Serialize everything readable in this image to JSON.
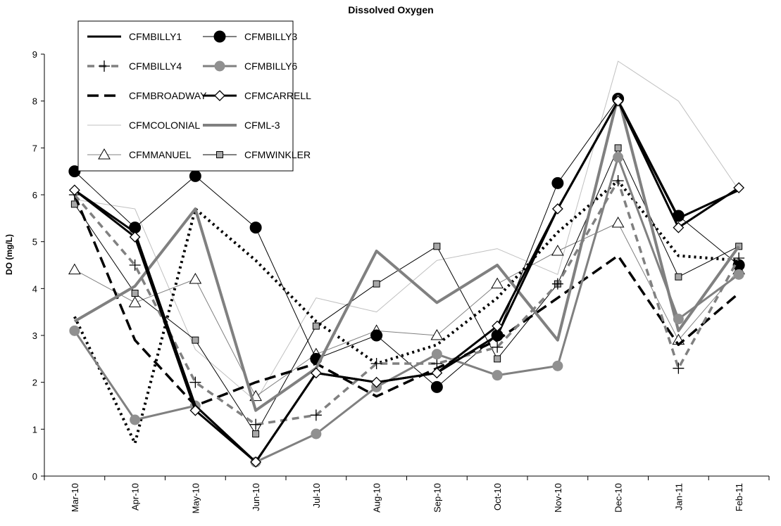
{
  "chart_data": {
    "type": "line",
    "title": "Dissolved Oxygen",
    "xlabel": "",
    "ylabel": "DO (mg/L)",
    "ylim": [
      0,
      9
    ],
    "yticks": [
      0,
      1,
      2,
      3,
      4,
      5,
      6,
      7,
      8,
      9
    ],
    "grid": false,
    "legend_placement": "top-left",
    "categories": [
      "Mar-10",
      "Apr-10",
      "May-10",
      "Jun-10",
      "Jul-10",
      "Aug-10",
      "Sep-10",
      "Oct-10",
      "Nov-10",
      "Dec-10",
      "Jan-11",
      "Feb-11"
    ],
    "series": [
      {
        "name": "CFMBILLY1",
        "color": "#000000",
        "dash": "solid",
        "marker": "none",
        "values": [
          6.1,
          5.2,
          1.5,
          0.3,
          2.2,
          2.0,
          2.2,
          3.0,
          5.7,
          8.0,
          5.5,
          6.1
        ]
      },
      {
        "name": "CFMBILLY3",
        "color": "#000000",
        "dash": "solid-thin",
        "marker": "circle-filled-black",
        "values": [
          6.5,
          5.3,
          6.4,
          5.3,
          2.5,
          3.0,
          1.9,
          3.0,
          6.25,
          8.05,
          5.55,
          4.5
        ]
      },
      {
        "name": "CFMBILLY4",
        "color": "#808080",
        "dash": "dash",
        "marker": "plus",
        "values": [
          6.0,
          4.5,
          2.0,
          1.1,
          1.3,
          2.4,
          2.4,
          2.75,
          4.1,
          6.3,
          2.3,
          4.65
        ]
      },
      {
        "name": "CFMBILLY6",
        "color": "#808080",
        "dash": "solid",
        "marker": "circle-filled-gray",
        "values": [
          3.1,
          1.2,
          1.5,
          0.3,
          0.9,
          1.9,
          2.6,
          2.15,
          2.35,
          6.8,
          3.35,
          4.3
        ]
      },
      {
        "name": "CFMBROADWAY",
        "color": "#000000",
        "dash": "longdash",
        "marker": "none",
        "values": [
          6.0,
          2.9,
          1.5,
          2.0,
          2.4,
          1.7,
          2.3,
          2.9,
          3.8,
          4.7,
          2.8,
          3.9
        ]
      },
      {
        "name": "CFMCARRELL",
        "color": "#000000",
        "dash": "solid",
        "marker": "diamond-open",
        "values": [
          6.1,
          5.1,
          1.4,
          0.3,
          2.2,
          2.0,
          2.2,
          3.2,
          5.7,
          8.0,
          5.3,
          6.15
        ]
      },
      {
        "name": "CFMCOLONIAL",
        "color": "#c0c0c0",
        "dash": "solid-thin",
        "marker": "none",
        "values": [
          5.9,
          5.7,
          2.7,
          1.6,
          3.8,
          3.5,
          4.6,
          4.85,
          4.3,
          8.85,
          8.0,
          6.1
        ]
      },
      {
        "name": "CFML-3",
        "color": "#808080",
        "dash": "solid-thick",
        "marker": "none",
        "values": [
          3.3,
          4.05,
          5.7,
          1.4,
          2.3,
          4.8,
          3.7,
          4.5,
          2.9,
          8.1,
          3.1,
          4.9
        ]
      },
      {
        "name": "CFMMANUEL",
        "color": "#808080",
        "dash": "solid-thin",
        "marker": "triangle-open",
        "values": [
          4.4,
          3.7,
          4.2,
          1.7,
          2.6,
          3.1,
          3.0,
          4.1,
          4.8,
          5.4,
          2.9,
          4.4
        ]
      },
      {
        "name": "CFMWINKLER",
        "color": "#000000",
        "dash": "solid-thin",
        "marker": "square-gray",
        "values": [
          5.8,
          3.9,
          2.9,
          0.9,
          3.2,
          4.1,
          4.9,
          2.5,
          4.1,
          7.0,
          4.25,
          4.9
        ]
      },
      {
        "name": "",
        "color": "#000000",
        "dash": "dot",
        "marker": "none",
        "values": [
          3.4,
          0.7,
          5.7,
          4.6,
          3.3,
          2.4,
          2.8,
          3.8,
          5.2,
          6.3,
          4.7,
          4.6
        ]
      }
    ]
  }
}
